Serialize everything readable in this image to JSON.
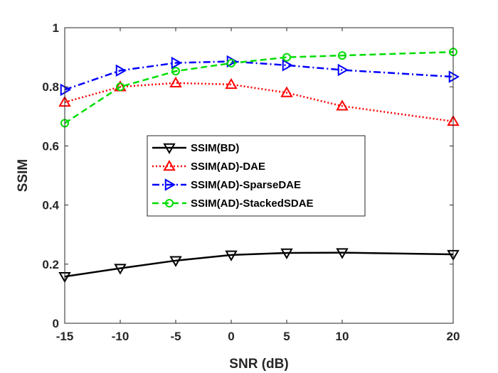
{
  "chart_data": {
    "type": "line",
    "title": "",
    "xlabel": "SNR (dB)",
    "ylabel": "SSIM",
    "x": [
      -15,
      -10,
      -5,
      0,
      5,
      10,
      20
    ],
    "xlim": [
      -15,
      20
    ],
    "ylim": [
      0,
      1
    ],
    "xticks": [
      "-15",
      "-10",
      "-5",
      "0",
      "5",
      "10",
      "20"
    ],
    "yticks": [
      "0",
      "0.2",
      "0.4",
      "0.6",
      "0.8",
      "1"
    ],
    "grid": false,
    "legend_position": "center-left",
    "series": [
      {
        "name": "SSIM(BD)",
        "values": [
          0.158,
          0.186,
          0.212,
          0.231,
          0.238,
          0.239,
          0.233
        ],
        "color": "#000000",
        "dash": "solid",
        "marker": "triangle-down"
      },
      {
        "name": "SSIM(AD)-DAE",
        "values": [
          0.748,
          0.8,
          0.813,
          0.808,
          0.78,
          0.735,
          0.683
        ],
        "color": "#ff0000",
        "dash": "dotted",
        "marker": "triangle-up"
      },
      {
        "name": "SSIM(AD)-SparseDAE",
        "values": [
          0.79,
          0.855,
          0.881,
          0.886,
          0.873,
          0.857,
          0.834
        ],
        "color": "#0000ff",
        "dash": "dashdot",
        "marker": "triangle-right"
      },
      {
        "name": "SSIM(AD)-StackedSDAE",
        "values": [
          0.677,
          0.8,
          0.853,
          0.88,
          0.9,
          0.906,
          0.918
        ],
        "color": "#00dd00",
        "dash": "dashed",
        "marker": "circle"
      }
    ]
  }
}
